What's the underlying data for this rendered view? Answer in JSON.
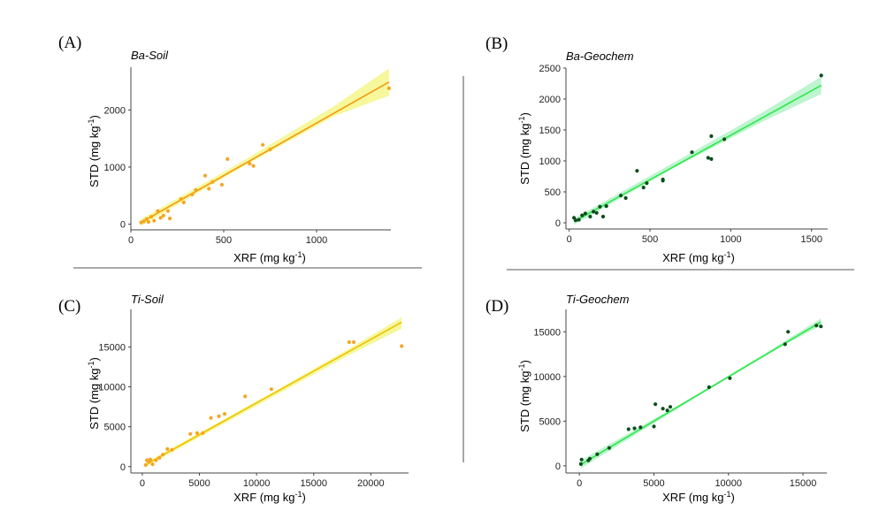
{
  "chart_data": [
    {
      "id": "A",
      "type": "scatter",
      "panel_label": "(A)",
      "title": "Ba-Soil",
      "xlabel": "XRF (mg kg",
      "ylabel": "STD (mg kg",
      "unit_exponent": "-1",
      "x_ticks": [
        0,
        500,
        1000
      ],
      "y_ticks": [
        0,
        1000,
        2000
      ],
      "xlim": [
        0,
        1400
      ],
      "ylim": [
        -100,
        2750
      ],
      "colors": {
        "point": "#f5a623",
        "line": "#f29a12",
        "band": "#f3f57a"
      },
      "points": [
        [
          55,
          30
        ],
        [
          70,
          50
        ],
        [
          85,
          90
        ],
        [
          95,
          40
        ],
        [
          110,
          130
        ],
        [
          125,
          60
        ],
        [
          145,
          230
        ],
        [
          160,
          110
        ],
        [
          175,
          150
        ],
        [
          200,
          230
        ],
        [
          210,
          100
        ],
        [
          270,
          440
        ],
        [
          285,
          380
        ],
        [
          330,
          520
        ],
        [
          350,
          600
        ],
        [
          400,
          850
        ],
        [
          420,
          620
        ],
        [
          440,
          740
        ],
        [
          490,
          690
        ],
        [
          520,
          1140
        ],
        [
          640,
          1060
        ],
        [
          660,
          1020
        ],
        [
          710,
          1390
        ],
        [
          750,
          1310
        ],
        [
          1390,
          2380
        ]
      ],
      "fit": {
        "x": [
          55,
          1390
        ],
        "y": [
          30,
          2490
        ]
      },
      "band": {
        "x": [
          55,
          600,
          1100,
          1390
        ],
        "upper": [
          90,
          1100,
          2080,
          2730
        ],
        "lower": [
          -30,
          1000,
          1900,
          2250
        ]
      }
    },
    {
      "id": "B",
      "type": "scatter",
      "panel_label": "(B)",
      "title": "Ba-Geochem",
      "xlabel": "XRF (mg kg",
      "ylabel": "STD (mg kg",
      "unit_exponent": "-1",
      "x_ticks": [
        0,
        500,
        1000,
        1500
      ],
      "y_ticks": [
        0,
        500,
        1000,
        1500,
        2000,
        2500
      ],
      "xlim": [
        -20,
        1600
      ],
      "ylim": [
        -100,
        2500
      ],
      "colors": {
        "point": "#0d4d1c",
        "line": "#2ee84a",
        "band": "#a8f0c0"
      },
      "points": [
        [
          30,
          80
        ],
        [
          40,
          40
        ],
        [
          60,
          50
        ],
        [
          80,
          120
        ],
        [
          100,
          150
        ],
        [
          130,
          100
        ],
        [
          150,
          180
        ],
        [
          170,
          160
        ],
        [
          190,
          260
        ],
        [
          210,
          100
        ],
        [
          230,
          270
        ],
        [
          320,
          440
        ],
        [
          350,
          400
        ],
        [
          420,
          840
        ],
        [
          460,
          570
        ],
        [
          480,
          640
        ],
        [
          580,
          700
        ],
        [
          580,
          680
        ],
        [
          760,
          1140
        ],
        [
          860,
          1050
        ],
        [
          880,
          1400
        ],
        [
          880,
          1030
        ],
        [
          960,
          1350
        ],
        [
          1560,
          2380
        ]
      ],
      "fit": {
        "x": [
          30,
          1560
        ],
        "y": [
          20,
          2220
        ]
      },
      "band": {
        "x": [
          30,
          700,
          1200,
          1560
        ],
        "upper": [
          70,
          1050,
          1790,
          2360
        ],
        "lower": [
          -30,
          960,
          1640,
          2080
        ]
      }
    },
    {
      "id": "C",
      "type": "scatter",
      "panel_label": "(C)",
      "title": "Ti-Soil",
      "xlabel": "XRF (mg kg",
      "ylabel": "STD (mg kg",
      "unit_exponent": "-1",
      "x_ticks": [
        0,
        5000,
        10000,
        15000,
        20000
      ],
      "y_ticks": [
        0,
        5000,
        10000,
        15000
      ],
      "xlim": [
        -1000,
        23300
      ],
      "ylim": [
        -800,
        19700
      ],
      "colors": {
        "point": "#f5a623",
        "line": "#f0c000",
        "band": "#f0f57a"
      },
      "points": [
        [
          300,
          200
        ],
        [
          400,
          800
        ],
        [
          600,
          600
        ],
        [
          700,
          900
        ],
        [
          900,
          300
        ],
        [
          1200,
          800
        ],
        [
          1500,
          1100
        ],
        [
          1800,
          1500
        ],
        [
          2200,
          2200
        ],
        [
          2600,
          2100
        ],
        [
          4200,
          4100
        ],
        [
          4800,
          4200
        ],
        [
          5300,
          4200
        ],
        [
          6000,
          6100
        ],
        [
          6700,
          6300
        ],
        [
          7200,
          6600
        ],
        [
          9000,
          8800
        ],
        [
          11300,
          9700
        ],
        [
          18100,
          15600
        ],
        [
          18500,
          15600
        ],
        [
          22700,
          15100
        ]
      ],
      "fit": {
        "x": [
          300,
          22700
        ],
        "y": [
          250,
          18100
        ]
      },
      "band": {
        "x": [
          300,
          12000,
          18000,
          22700
        ],
        "upper": [
          500,
          9800,
          14700,
          18700
        ],
        "lower": [
          0,
          9200,
          13900,
          17300
        ]
      }
    },
    {
      "id": "D",
      "type": "scatter",
      "panel_label": "(D)",
      "title": "Ti-Geochem",
      "xlabel": "XRF (mg kg",
      "ylabel": "STD (mg kg",
      "unit_exponent": "-1",
      "x_ticks": [
        0,
        5000,
        10000,
        15000
      ],
      "y_ticks": [
        0,
        5000,
        10000,
        15000
      ],
      "xlim": [
        -900,
        16600
      ],
      "ylim": [
        -800,
        17500
      ],
      "colors": {
        "point": "#0d4d1c",
        "line": "#2ee84a",
        "band": "#a8f0c0"
      },
      "points": [
        [
          100,
          200
        ],
        [
          150,
          700
        ],
        [
          600,
          600
        ],
        [
          700,
          800
        ],
        [
          1200,
          1300
        ],
        [
          2000,
          2000
        ],
        [
          3300,
          4100
        ],
        [
          3700,
          4200
        ],
        [
          4100,
          4300
        ],
        [
          5000,
          4400
        ],
        [
          5100,
          6900
        ],
        [
          5600,
          6400
        ],
        [
          5900,
          6200
        ],
        [
          6100,
          6600
        ],
        [
          8700,
          8800
        ],
        [
          10100,
          9800
        ],
        [
          13800,
          13600
        ],
        [
          14000,
          15000
        ],
        [
          15900,
          15700
        ],
        [
          16200,
          15600
        ]
      ],
      "fit": {
        "x": [
          100,
          16200
        ],
        "y": [
          150,
          16100
        ]
      },
      "band": {
        "x": [
          100,
          8000,
          13000,
          16200
        ],
        "upper": [
          600,
          8100,
          13150,
          16500
        ],
        "lower": [
          -300,
          7850,
          12850,
          15700
        ]
      }
    }
  ]
}
